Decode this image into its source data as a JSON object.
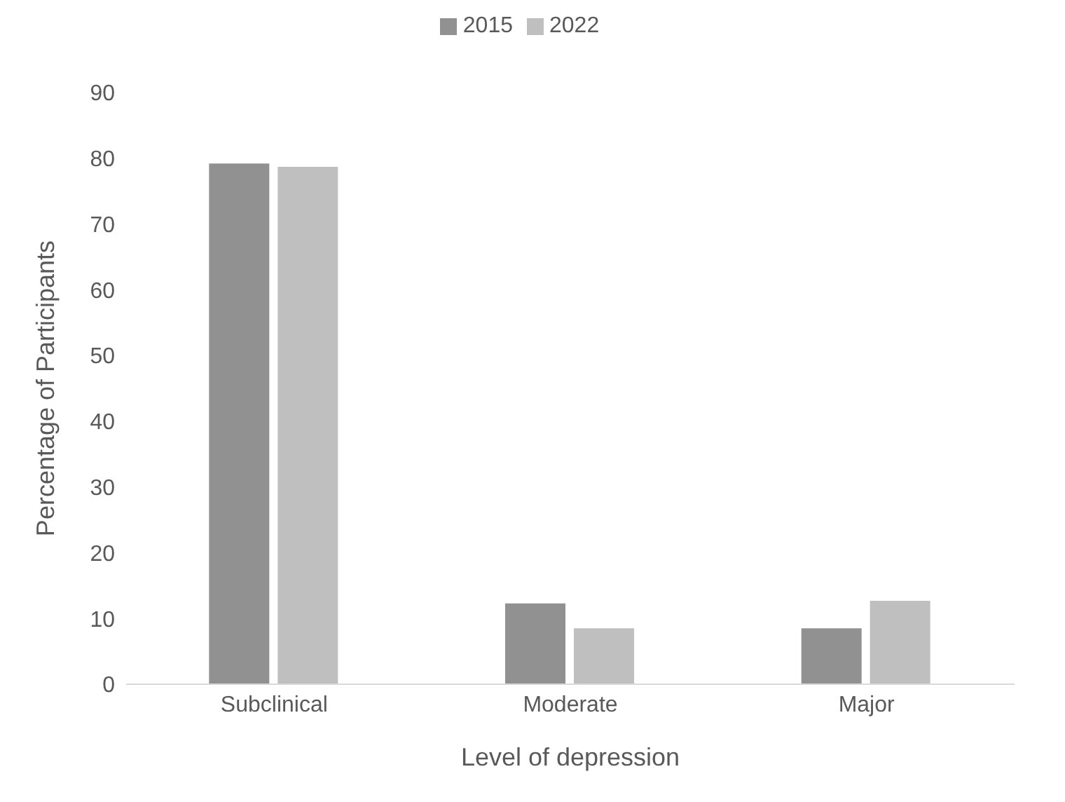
{
  "chart_data": {
    "type": "bar",
    "xlabel": "Level of depression",
    "ylabel": "Percentage of Participants",
    "categories": [
      "Subclinical",
      "Moderate",
      "Major"
    ],
    "series": [
      {
        "name": "2015",
        "color": "#919191",
        "values": [
          79.2,
          12.3,
          8.5
        ]
      },
      {
        "name": "2022",
        "color": "#bfbfbf",
        "values": [
          78.7,
          8.5,
          12.7
        ]
      }
    ],
    "ylim": [
      0,
      90
    ],
    "yticks": [
      0,
      10,
      20,
      30,
      40,
      50,
      60,
      70,
      80,
      90
    ],
    "grid": false,
    "legend": "top"
  }
}
